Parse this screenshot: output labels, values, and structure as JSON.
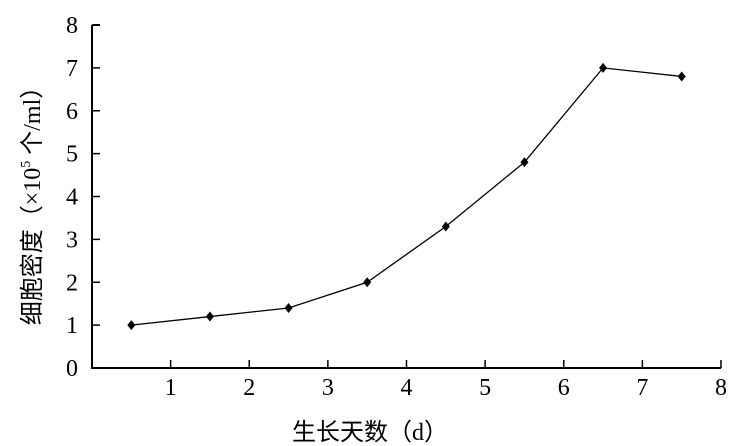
{
  "chart_data": {
    "type": "line",
    "title": "",
    "xlabel": "生长天数（d）",
    "ylabel_main": "细胞密度（×10",
    "ylabel_sup": "5",
    "ylabel_tail": " 个/ml）",
    "xlim": [
      0,
      8
    ],
    "ylim": [
      0,
      8
    ],
    "xticks": [
      "1",
      "2",
      "3",
      "4",
      "5",
      "6",
      "7",
      "8"
    ],
    "yticks": [
      "0",
      "1",
      "2",
      "3",
      "4",
      "5",
      "6",
      "7",
      "8"
    ],
    "grid": false,
    "marker": "diamond",
    "line_color": "#000000",
    "series": [
      {
        "x": [
          0.5,
          1.5,
          2.5,
          3.5,
          4.5,
          5.5,
          6.5,
          7.5
        ],
        "values": [
          1.0,
          1.2,
          1.4,
          2.0,
          3.3,
          4.8,
          7.0,
          6.8
        ]
      }
    ]
  }
}
